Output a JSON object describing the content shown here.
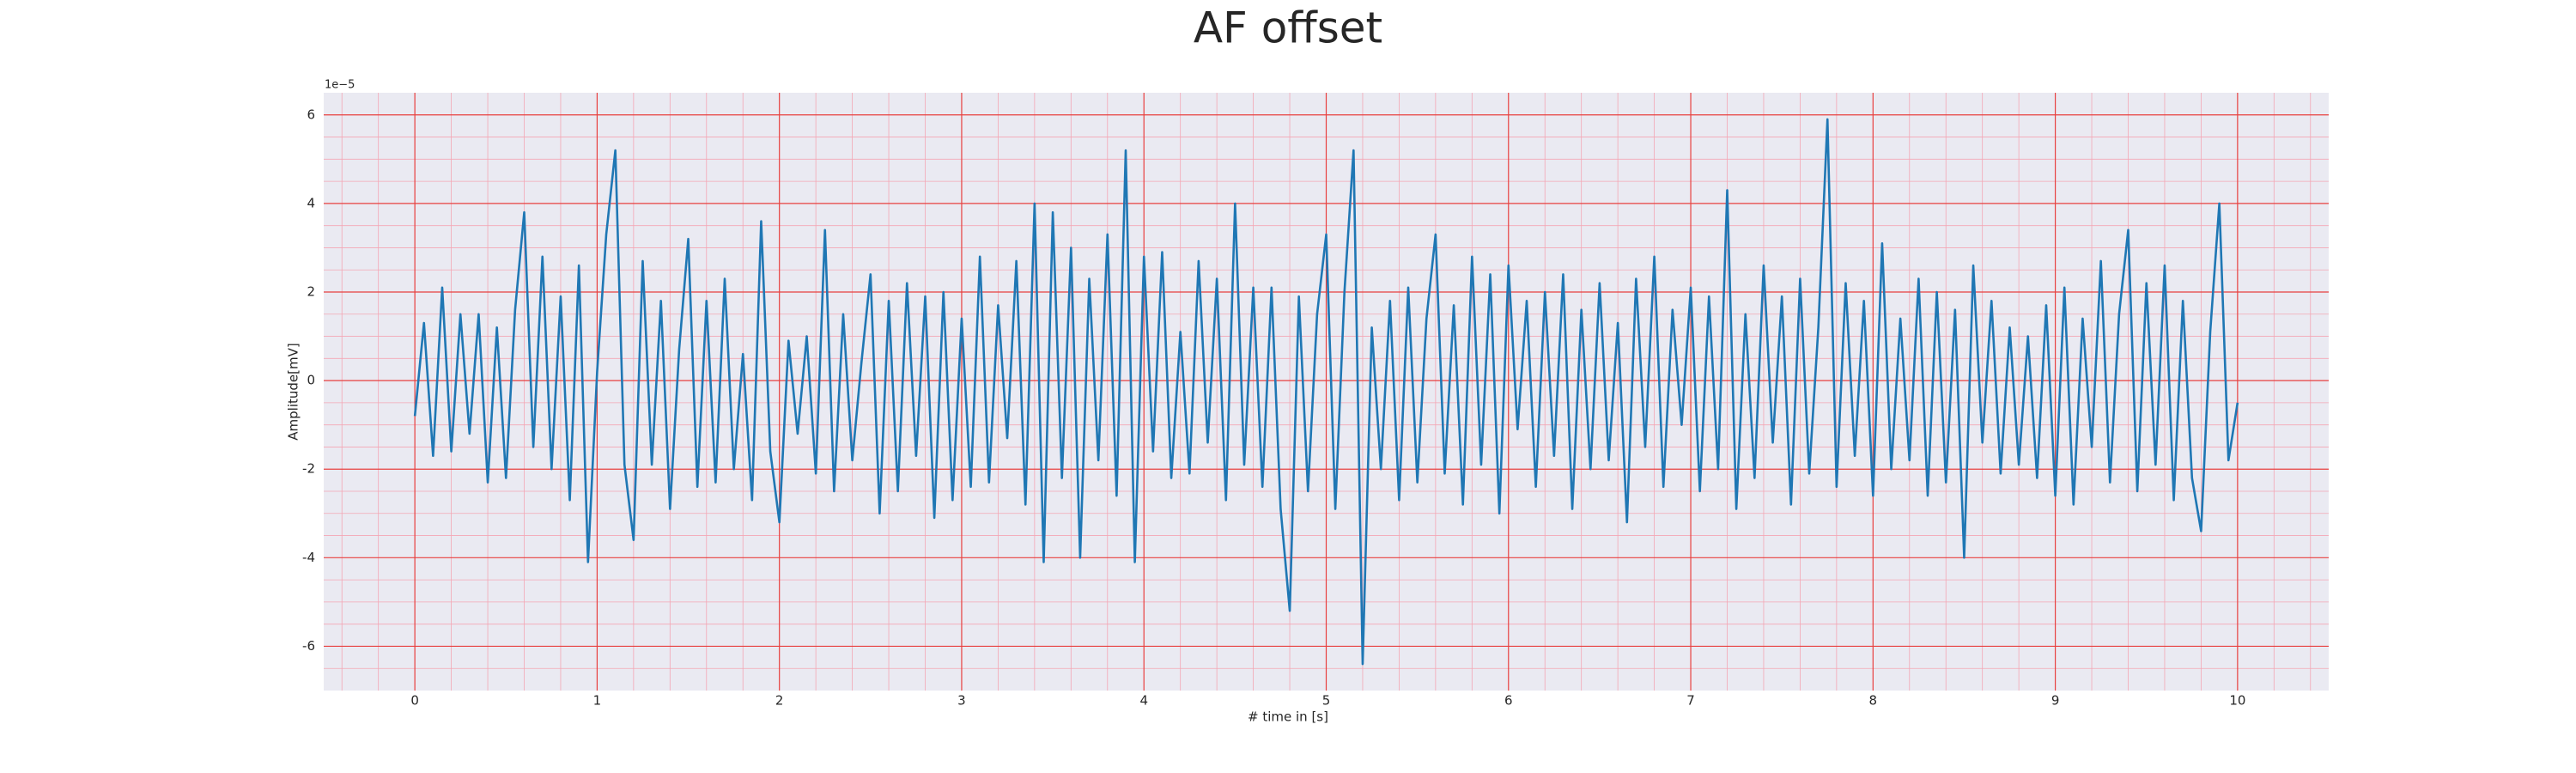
{
  "chart_data": {
    "type": "line",
    "title": "AF offset",
    "xlabel": "# time in [s]",
    "ylabel": "Amplitude[mV]",
    "y_offset_label": "1e−5",
    "color": "#1f77b4",
    "grid": true,
    "minor_grid": true,
    "xlim": [
      -0.5,
      10.5
    ],
    "ylim": [
      -7,
      6.5
    ],
    "xticks": [
      0,
      1,
      2,
      3,
      4,
      5,
      6,
      7,
      8,
      9,
      10
    ],
    "yticks": [
      -6,
      -4,
      -2,
      0,
      2,
      4,
      6
    ],
    "xminorticks": [
      -0.4,
      -0.2,
      0.2,
      0.4,
      0.6,
      0.8,
      1.2,
      1.4,
      1.6,
      1.8,
      2.2,
      2.4,
      2.6,
      2.8,
      3.2,
      3.4,
      3.6,
      3.8,
      4.2,
      4.4,
      4.6,
      4.8,
      5.2,
      5.4,
      5.6,
      5.8,
      6.2,
      6.4,
      6.6,
      6.8,
      7.2,
      7.4,
      7.6,
      7.8,
      8.2,
      8.4,
      8.6,
      8.8,
      9.2,
      9.4,
      9.6,
      9.8,
      10.2,
      10.4
    ],
    "yminorticks": [
      -6.5,
      -5.5,
      -5,
      -4.5,
      -3.5,
      -3,
      -2.5,
      -1.5,
      -1,
      -0.5,
      0.5,
      1,
      1.5,
      2.5,
      3,
      3.5,
      4.5,
      5,
      5.5
    ],
    "x": [
      0,
      0.05,
      0.1,
      0.15,
      0.2,
      0.25,
      0.3,
      0.35,
      0.4,
      0.45,
      0.5,
      0.55,
      0.6,
      0.65,
      0.7,
      0.75,
      0.8,
      0.85,
      0.9,
      0.95,
      1,
      1.05,
      1.1,
      1.15,
      1.2,
      1.25,
      1.3,
      1.35,
      1.4,
      1.45,
      1.5,
      1.55,
      1.6,
      1.65,
      1.7,
      1.75,
      1.8,
      1.85,
      1.9,
      1.95,
      2,
      2.05,
      2.1,
      2.15,
      2.2,
      2.25,
      2.3,
      2.35,
      2.4,
      2.45,
      2.5,
      2.55,
      2.6,
      2.65,
      2.7,
      2.75,
      2.8,
      2.85,
      2.9,
      2.95,
      3,
      3.05,
      3.1,
      3.15,
      3.2,
      3.25,
      3.3,
      3.35,
      3.4,
      3.45,
      3.5,
      3.55,
      3.6,
      3.65,
      3.7,
      3.75,
      3.8,
      3.85,
      3.9,
      3.95,
      4,
      4.05,
      4.1,
      4.15,
      4.2,
      4.25,
      4.3,
      4.35,
      4.4,
      4.45,
      4.5,
      4.55,
      4.6,
      4.65,
      4.7,
      4.75,
      4.8,
      4.85,
      4.9,
      4.95,
      5,
      5.05,
      5.1,
      5.15,
      5.2,
      5.25,
      5.3,
      5.35,
      5.4,
      5.45,
      5.5,
      5.55,
      5.6,
      5.65,
      5.7,
      5.75,
      5.8,
      5.85,
      5.9,
      5.95,
      6,
      6.05,
      6.1,
      6.15,
      6.2,
      6.25,
      6.3,
      6.35,
      6.4,
      6.45,
      6.5,
      6.55,
      6.6,
      6.65,
      6.7,
      6.75,
      6.8,
      6.85,
      6.9,
      6.95,
      7,
      7.05,
      7.1,
      7.15,
      7.2,
      7.25,
      7.3,
      7.35,
      7.4,
      7.45,
      7.5,
      7.55,
      7.6,
      7.65,
      7.7,
      7.75,
      7.8,
      7.85,
      7.9,
      7.95,
      8,
      8.05,
      8.1,
      8.15,
      8.2,
      8.25,
      8.3,
      8.35,
      8.4,
      8.45,
      8.5,
      8.55,
      8.6,
      8.65,
      8.7,
      8.75,
      8.8,
      8.85,
      8.9,
      8.95,
      9,
      9.05,
      9.1,
      9.15,
      9.2,
      9.25,
      9.3,
      9.35,
      9.4,
      9.45,
      9.5,
      9.55,
      9.6,
      9.65,
      9.7,
      9.75,
      9.8,
      9.85,
      9.9,
      9.95,
      10
    ],
    "values": [
      -0.8,
      1.3,
      -1.7,
      2.1,
      -1.6,
      1.5,
      -1.2,
      1.5,
      -2.3,
      1.2,
      -2.2,
      1.6,
      3.8,
      -1.5,
      2.8,
      -2.0,
      1.9,
      -2.7,
      2.6,
      -4.1,
      0.2,
      3.3,
      5.2,
      -1.9,
      -3.6,
      2.7,
      -1.9,
      1.8,
      -2.9,
      0.7,
      3.2,
      -2.4,
      1.8,
      -2.3,
      2.3,
      -2.0,
      0.6,
      -2.7,
      3.6,
      -1.6,
      -3.2,
      0.9,
      -1.2,
      1.0,
      -2.1,
      3.4,
      -2.5,
      1.5,
      -1.8,
      0.4,
      2.4,
      -3.0,
      1.8,
      -2.5,
      2.2,
      -1.7,
      1.9,
      -3.1,
      2.0,
      -2.7,
      1.4,
      -2.4,
      2.8,
      -2.3,
      1.7,
      -1.3,
      2.7,
      -2.8,
      4.0,
      -4.1,
      3.8,
      -2.2,
      3.0,
      -4.0,
      2.3,
      -1.8,
      3.3,
      -2.6,
      5.2,
      -4.1,
      2.8,
      -1.6,
      2.9,
      -2.2,
      1.1,
      -2.1,
      2.7,
      -1.4,
      2.3,
      -2.7,
      4.0,
      -1.9,
      2.1,
      -2.4,
      2.1,
      -2.9,
      -5.2,
      1.9,
      -2.5,
      1.5,
      3.3,
      -2.9,
      2.0,
      5.2,
      -6.4,
      1.2,
      -2.0,
      1.8,
      -2.7,
      2.1,
      -2.3,
      1.4,
      3.3,
      -2.1,
      1.7,
      -2.8,
      2.8,
      -1.9,
      2.4,
      -3.0,
      2.6,
      -1.1,
      1.8,
      -2.4,
      2.0,
      -1.7,
      2.4,
      -2.9,
      1.6,
      -2.0,
      2.2,
      -1.8,
      1.3,
      -3.2,
      2.3,
      -1.5,
      2.8,
      -2.4,
      1.6,
      -1.0,
      2.1,
      -2.5,
      1.9,
      -2.0,
      4.3,
      -2.9,
      1.5,
      -2.2,
      2.6,
      -1.4,
      1.9,
      -2.8,
      2.3,
      -2.1,
      1.2,
      5.9,
      -2.4,
      2.2,
      -1.7,
      1.8,
      -2.6,
      3.1,
      -2.0,
      1.4,
      -1.8,
      2.3,
      -2.6,
      2.0,
      -2.3,
      1.6,
      -4.0,
      2.6,
      -1.4,
      1.8,
      -2.1,
      1.2,
      -1.9,
      1.0,
      -2.2,
      1.7,
      -2.6,
      2.1,
      -2.8,
      1.4,
      -1.5,
      2.7,
      -2.3,
      1.5,
      3.4,
      -2.5,
      2.2,
      -1.9,
      2.6,
      -2.7,
      1.8,
      -2.2,
      -3.4,
      1.1,
      4.0,
      -1.8,
      -0.5
    ]
  }
}
